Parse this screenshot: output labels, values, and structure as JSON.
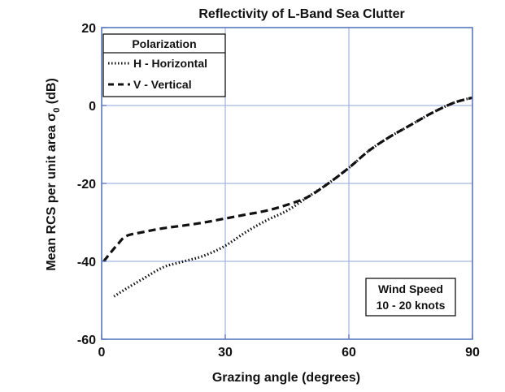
{
  "chart_data": {
    "type": "line",
    "title": "Reflectivity of L-Band Sea Clutter",
    "xlabel": "Grazing angle (degrees)",
    "ylabel": "Mean RCS per unit area σ",
    "ylabel_subscript": "0",
    "ylabel_unit": " (dB)",
    "xlim": [
      0,
      90
    ],
    "ylim": [
      -60,
      20
    ],
    "xticks": [
      0,
      30,
      60,
      90
    ],
    "yticks": [
      -60,
      -40,
      -20,
      0,
      20
    ],
    "grid": true,
    "legend": {
      "title": "Polarization",
      "position": "top-left",
      "entries": [
        {
          "label": "H - Horizontal",
          "style": "dotted"
        },
        {
          "label": "V - Vertical",
          "style": "dashed"
        }
      ]
    },
    "annotation": {
      "lines": [
        "Wind Speed",
        "10 - 20 knots"
      ],
      "position": "bottom-right"
    },
    "series": [
      {
        "name": "H - Horizontal",
        "style": "dotted",
        "color": "#111111",
        "x": [
          3,
          6,
          10,
          15,
          20,
          25,
          30,
          35,
          40,
          45,
          50,
          55,
          60,
          65,
          70,
          75,
          80,
          85,
          88,
          90
        ],
        "y": [
          -49,
          -47,
          -44.5,
          -41.5,
          -40,
          -38.5,
          -36,
          -32.5,
          -29.5,
          -27,
          -23.5,
          -20,
          -16,
          -11.5,
          -8,
          -5,
          -2,
          0.5,
          1.5,
          2
        ]
      },
      {
        "name": "V - Vertical",
        "style": "dashed",
        "color": "#111111",
        "x": [
          0.5,
          2,
          4,
          6,
          10,
          15,
          20,
          25,
          30,
          35,
          40,
          45,
          50,
          55,
          60,
          65,
          70,
          75,
          80,
          85,
          88,
          90
        ],
        "y": [
          -40,
          -38,
          -35.5,
          -33.5,
          -32.5,
          -31.5,
          -30.8,
          -30,
          -29,
          -28,
          -27,
          -25.5,
          -23.5,
          -20,
          -16,
          -11.5,
          -8,
          -5,
          -2,
          0.5,
          1.5,
          2
        ]
      }
    ]
  }
}
